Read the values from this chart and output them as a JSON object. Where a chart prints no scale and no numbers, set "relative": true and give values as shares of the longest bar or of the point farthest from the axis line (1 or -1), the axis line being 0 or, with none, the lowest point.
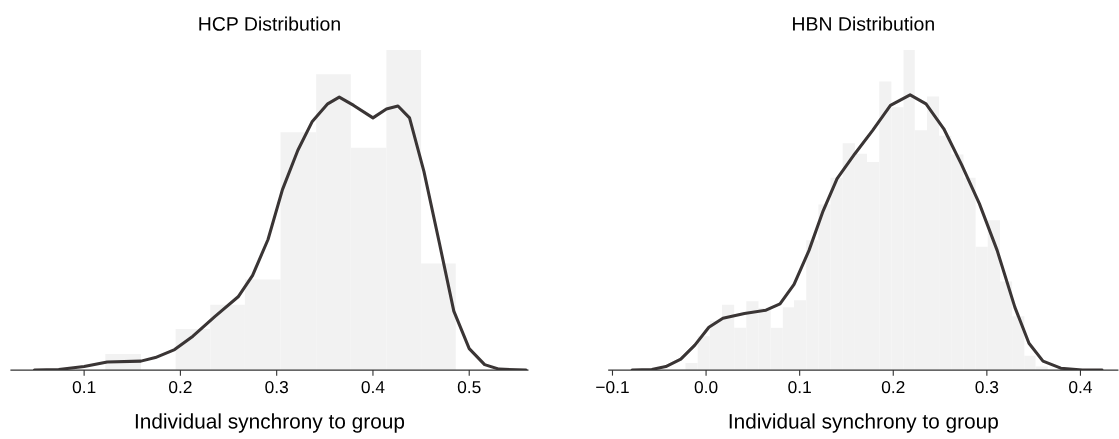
{
  "chart_data": [
    {
      "type": "histogram",
      "title": "HCP Distribution",
      "xlabel": "Individual synchrony to group",
      "relative": true,
      "color": "#f2f2f2",
      "bins": [
        0.122,
        0.159,
        0.195,
        0.231,
        0.267,
        0.304,
        0.341,
        0.377,
        0.414,
        0.45,
        0.486
      ],
      "values": [
        0.05,
        0,
        0.128,
        0.204,
        0.283,
        0.743,
        0.924,
        0.695,
        1.0,
        0.333
      ],
      "xlim": [
        0.024,
        0.561
      ],
      "xticks": [
        0.1,
        0.2,
        0.3,
        0.4,
        0.5
      ],
      "series": [
        {
          "type": "line",
          "color": "#3a3535",
          "x": [
            0.0484,
            0.0736,
            0.1,
            0.124,
            0.159,
            0.174,
            0.194,
            0.213,
            0.236,
            0.26,
            0.275,
            0.291,
            0.306,
            0.322,
            0.337,
            0.353,
            0.365,
            0.38,
            0.4,
            0.414,
            0.426,
            0.438,
            0.453,
            0.469,
            0.484,
            0.5,
            0.516,
            0.531,
            0.559
          ],
          "values": [
            0,
            0.002,
            0.011,
            0.025,
            0.028,
            0.039,
            0.064,
            0.106,
            0.168,
            0.229,
            0.296,
            0.408,
            0.564,
            0.687,
            0.777,
            0.832,
            0.853,
            0.827,
            0.788,
            0.816,
            0.825,
            0.788,
            0.62,
            0.397,
            0.184,
            0.067,
            0.017,
            0.003,
            0
          ]
        }
      ]
    },
    {
      "type": "histogram",
      "title": "HBN Distribution",
      "xlabel": "Individual synchrony to group",
      "relative": true,
      "color": "#f2f2f2",
      "bins": [
        -0.022,
        -0.009,
        0.004,
        0.017,
        0.03,
        0.043,
        0.056,
        0.069,
        0.082,
        0.094,
        0.107,
        0.12,
        0.133,
        0.146,
        0.159,
        0.172,
        0.185,
        0.198,
        0.211,
        0.223,
        0.236,
        0.249,
        0.262,
        0.275,
        0.288,
        0.301,
        0.314,
        0.327,
        0.34,
        0.352,
        0.365
      ],
      "values": [
        0.022,
        0.106,
        0.154,
        0.204,
        0.132,
        0.215,
        0.193,
        0.132,
        0.196,
        0.218,
        0.406,
        0.517,
        0.601,
        0.709,
        0.676,
        0.65,
        0.902,
        0.821,
        1.0,
        0.749,
        0.855,
        0.732,
        0.674,
        0.601,
        0.385,
        0.468,
        0.277,
        0.168,
        0.045,
        0.011
      ],
      "xlim": [
        -0.104,
        0.44
      ],
      "xticks": [
        {
          "value": -0.1,
          "label": "−0.1"
        },
        {
          "value": 0,
          "label": "0.0"
        },
        0.1,
        0.2,
        0.3,
        0.4
      ],
      "series": [
        {
          "type": "line",
          "color": "#3a3535",
          "x": [
            -0.079,
            -0.058,
            -0.043,
            -0.027,
            -0.012,
            0.003,
            0.018,
            0.041,
            0.064,
            0.079,
            0.094,
            0.11,
            0.125,
            0.14,
            0.159,
            0.178,
            0.197,
            0.218,
            0.235,
            0.254,
            0.273,
            0.292,
            0.311,
            0.33,
            0.345,
            0.36,
            0.379,
            0.402,
            0.423
          ],
          "values": [
            0,
            0.002,
            0.011,
            0.034,
            0.078,
            0.134,
            0.162,
            0.177,
            0.187,
            0.207,
            0.268,
            0.374,
            0.497,
            0.598,
            0.676,
            0.749,
            0.827,
            0.86,
            0.832,
            0.754,
            0.642,
            0.52,
            0.374,
            0.196,
            0.084,
            0.028,
            0.006,
            0,
            0
          ]
        }
      ]
    }
  ]
}
